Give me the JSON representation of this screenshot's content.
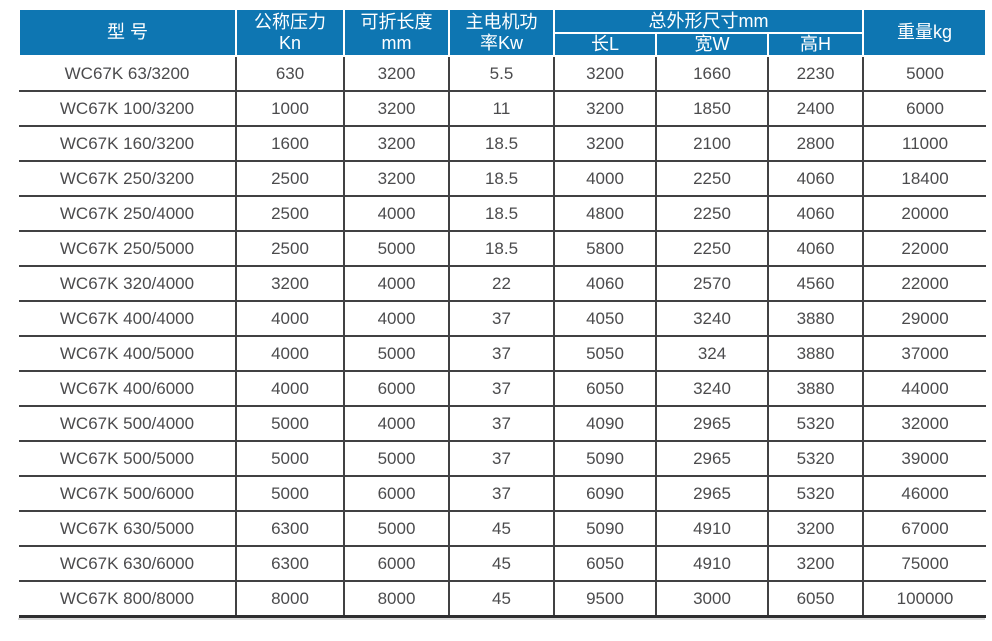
{
  "accent_color": "#0e76b2",
  "body_text_color": "#4b4b4d",
  "table": {
    "header": {
      "model": "型 号",
      "pressure_line1": "公称压力",
      "pressure_line2": "Kn",
      "fold_length_line1": "可折长度",
      "fold_length_line2": "mm",
      "motor_power_line1": "主电机功",
      "motor_power_line2": "率Kw",
      "dimensions_group": "总外形尺寸mm",
      "dim_length": "长L",
      "dim_width": "宽W",
      "dim_height": "高H",
      "weight": "重量kg"
    },
    "rows": [
      [
        "WC67K 63/3200",
        "630",
        "3200",
        "5.5",
        "3200",
        "1660",
        "2230",
        "5000"
      ],
      [
        "WC67K 100/3200",
        "1000",
        "3200",
        "11",
        "3200",
        "1850",
        "2400",
        "6000"
      ],
      [
        "WC67K 160/3200",
        "1600",
        "3200",
        "18.5",
        "3200",
        "2100",
        "2800",
        "11000"
      ],
      [
        "WC67K 250/3200",
        "2500",
        "3200",
        "18.5",
        "4000",
        "2250",
        "4060",
        "18400"
      ],
      [
        "WC67K 250/4000",
        "2500",
        "4000",
        "18.5",
        "4800",
        "2250",
        "4060",
        "20000"
      ],
      [
        "WC67K 250/5000",
        "2500",
        "5000",
        "18.5",
        "5800",
        "2250",
        "4060",
        "22000"
      ],
      [
        "WC67K 320/4000",
        "3200",
        "4000",
        "22",
        "4060",
        "2570",
        "4560",
        "22000"
      ],
      [
        "WC67K 400/4000",
        "4000",
        "4000",
        "37",
        "4050",
        "3240",
        "3880",
        "29000"
      ],
      [
        "WC67K 400/5000",
        "4000",
        "5000",
        "37",
        "5050",
        "324",
        "3880",
        "37000"
      ],
      [
        "WC67K 400/6000",
        "4000",
        "6000",
        "37",
        "6050",
        "3240",
        "3880",
        "44000"
      ],
      [
        "WC67K 500/4000",
        "5000",
        "4000",
        "37",
        "4090",
        "2965",
        "5320",
        "32000"
      ],
      [
        "WC67K 500/5000",
        "5000",
        "5000",
        "37",
        "5090",
        "2965",
        "5320",
        "39000"
      ],
      [
        "WC67K 500/6000",
        "5000",
        "6000",
        "37",
        "6090",
        "2965",
        "5320",
        "46000"
      ],
      [
        "WC67K 630/5000",
        "6300",
        "5000",
        "45",
        "5090",
        "4910",
        "3200",
        "67000"
      ],
      [
        "WC67K 630/6000",
        "6300",
        "6000",
        "45",
        "6050",
        "4910",
        "3200",
        "75000"
      ],
      [
        "WC67K 800/8000",
        "8000",
        "8000",
        "45",
        "9500",
        "3000",
        "6050",
        "100000"
      ]
    ]
  }
}
